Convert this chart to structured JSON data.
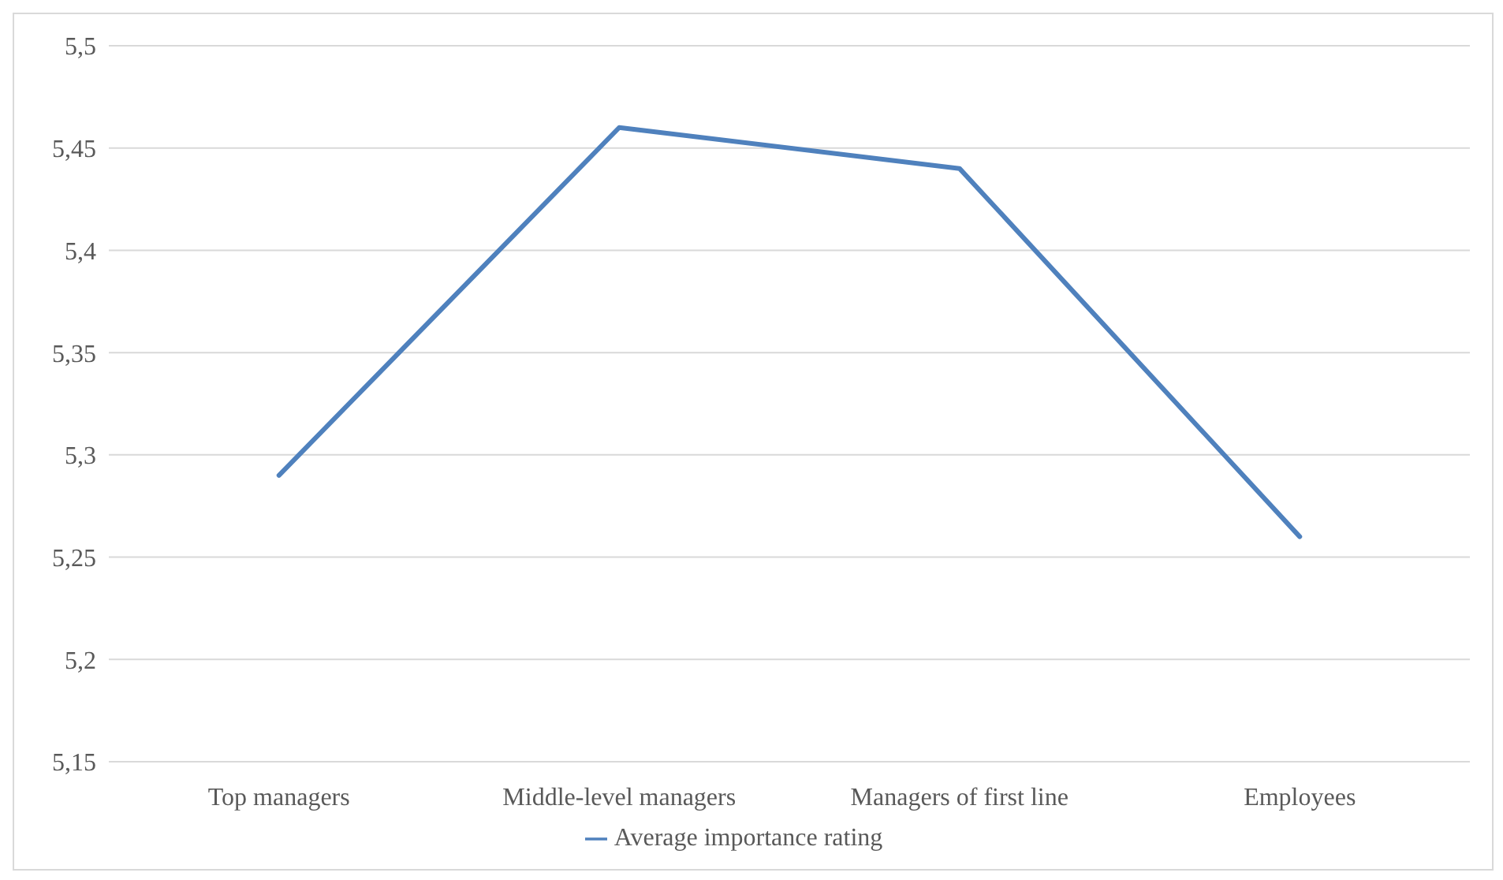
{
  "chart_data": {
    "type": "line",
    "categories": [
      "Top managers",
      "Middle-level managers",
      "Managers of first line",
      "Employees"
    ],
    "series": [
      {
        "name": "Average importance rating",
        "color": "#4f81bd",
        "values": [
          5.29,
          5.46,
          5.44,
          5.26
        ]
      }
    ],
    "ylim": [
      5.15,
      5.5
    ],
    "yticks": [
      {
        "value": 5.15,
        "label": "5,15"
      },
      {
        "value": 5.2,
        "label": "5,2"
      },
      {
        "value": 5.25,
        "label": "5,25"
      },
      {
        "value": 5.3,
        "label": "5,3"
      },
      {
        "value": 5.35,
        "label": "5,35"
      },
      {
        "value": 5.4,
        "label": "5,4"
      },
      {
        "value": 5.45,
        "label": "5,45"
      },
      {
        "value": 5.5,
        "label": "5,5"
      }
    ],
    "grid": "y",
    "legend": "bottom",
    "marker": "none",
    "line_style": "solid"
  }
}
